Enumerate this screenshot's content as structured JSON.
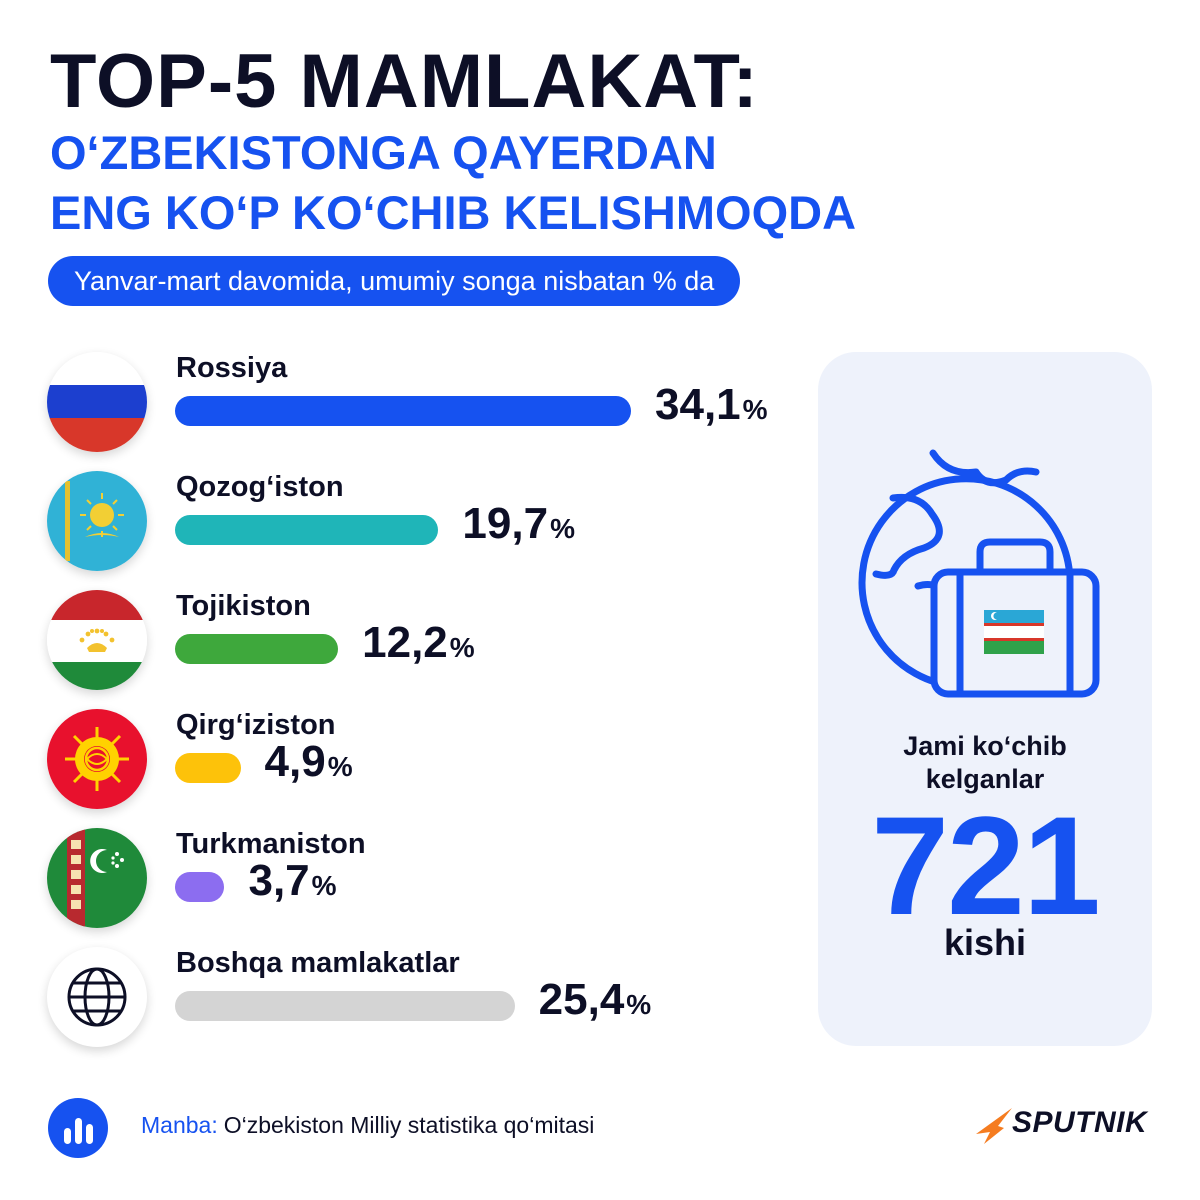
{
  "header": {
    "title": "TOP-5 MAMLAKAT:",
    "subtitle_line1": "O‘ZBEKISTONGA QAYERDAN",
    "subtitle_line2": "ENG KO‘P KO‘CHIB KELISHMOQDA",
    "note": "Yanvar-mart davomida, umumiy songa nisbatan % da"
  },
  "chart_data": {
    "type": "bar",
    "orientation": "horizontal",
    "categories": [
      "Rossiya",
      "Qozog‘iston",
      "Tojikiston",
      "Qirg‘iziston",
      "Turkmaniston",
      "Boshqa mamlakatlar"
    ],
    "values": [
      34.1,
      19.7,
      12.2,
      4.9,
      3.7,
      25.4
    ],
    "value_labels": [
      "34,1",
      "19,7",
      "12,2",
      "4,9",
      "3,7",
      "25,4"
    ],
    "unit": "%",
    "colors": [
      "#1652f0",
      "#1fb5b8",
      "#3ea83c",
      "#fdc20a",
      "#8c6df0",
      "#d4d4d4"
    ],
    "icons": [
      "russia-flag-icon",
      "kazakhstan-flag-icon",
      "tajikistan-flag-icon",
      "kyrgyzstan-flag-icon",
      "turkmenistan-flag-icon",
      "globe-icon"
    ],
    "xlim": [
      0,
      34.1
    ],
    "legend": "none",
    "grid": false
  },
  "summary": {
    "label_line1": "Jami ko‘chib",
    "label_line2": "kelganlar",
    "total": "721",
    "unit": "kishi",
    "icon": "globe-suitcase-icon"
  },
  "footer": {
    "source_label": "Manba:",
    "source_text": "O‘zbekiston Milliy statistika qo‘mitasi",
    "source_icon": "bar-chart-icon",
    "brand": "SPUTNIK",
    "brand_icon": "sputnik-logo-icon"
  },
  "colors": {
    "accent": "#1652f0",
    "text": "#0d0f26",
    "card_bg": "#eef2fb"
  }
}
